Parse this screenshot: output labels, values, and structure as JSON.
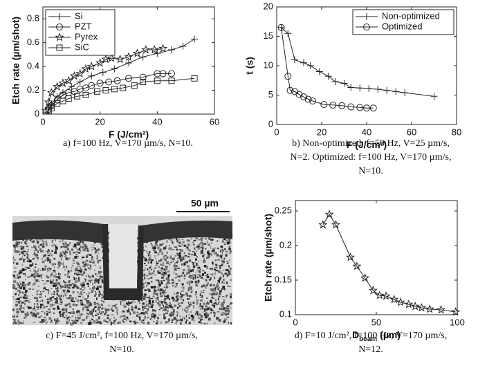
{
  "chart_data": [
    {
      "type": "line",
      "ylabel": "Etch rate (µm/shot)",
      "xlabel": "F (J/cm²)",
      "xlim": [
        0,
        60
      ],
      "xticks": [
        0,
        20,
        40,
        60
      ],
      "ylim": [
        0,
        0.9
      ],
      "yticks": [
        0,
        0.2,
        0.4,
        0.6,
        0.8
      ],
      "grid": false,
      "legend": "upper left",
      "series": [
        {
          "name": "Si",
          "marker": "plus",
          "color": "#222222",
          "x": [
            2,
            3,
            5,
            7,
            10,
            13,
            17,
            21,
            25,
            30,
            35,
            40,
            45,
            49,
            53
          ],
          "values": [
            0.04,
            0.08,
            0.15,
            0.18,
            0.23,
            0.27,
            0.32,
            0.35,
            0.38,
            0.43,
            0.48,
            0.51,
            0.54,
            0.57,
            0.63
          ]
        },
        {
          "name": "PZT",
          "marker": "circle",
          "color": "#222222",
          "x": [
            2,
            3,
            5,
            7,
            9,
            11,
            13,
            15,
            17,
            20,
            23,
            26,
            30,
            35,
            40,
            42,
            45
          ],
          "values": [
            0.04,
            0.07,
            0.12,
            0.16,
            0.18,
            0.19,
            0.21,
            0.22,
            0.24,
            0.26,
            0.27,
            0.28,
            0.3,
            0.31,
            0.34,
            0.34,
            0.34
          ]
        },
        {
          "name": "Pyrex",
          "marker": "star",
          "color": "#222222",
          "x": [
            1,
            2,
            3,
            5,
            7,
            9,
            11,
            13,
            15,
            17,
            20,
            22,
            24,
            27,
            30,
            33,
            36,
            39,
            42
          ],
          "values": [
            0.03,
            0.1,
            0.18,
            0.23,
            0.26,
            0.28,
            0.32,
            0.34,
            0.38,
            0.4,
            0.43,
            0.46,
            0.47,
            0.46,
            0.48,
            0.51,
            0.54,
            0.54,
            0.55
          ]
        },
        {
          "name": "SiC",
          "marker": "square",
          "color": "#222222",
          "x": [
            2,
            3,
            5,
            7,
            9,
            12,
            15,
            19,
            22,
            25,
            28,
            32,
            35,
            40,
            45,
            53
          ],
          "values": [
            0.03,
            0.05,
            0.09,
            0.11,
            0.13,
            0.15,
            0.16,
            0.19,
            0.2,
            0.21,
            0.22,
            0.24,
            0.27,
            0.28,
            0.28,
            0.3
          ]
        }
      ],
      "caption": [
        "a) f=100 Hz, V=170 µm/s, N=10."
      ]
    },
    {
      "type": "line",
      "ylabel": "t (s)",
      "xlabel": "F (J/cm²)",
      "xlim": [
        0,
        80
      ],
      "xticks": [
        0,
        20,
        40,
        60,
        80
      ],
      "ylim": [
        0,
        20
      ],
      "yticks": [
        0,
        5,
        10,
        15,
        20
      ],
      "grid": false,
      "legend": "upper right",
      "series": [
        {
          "name": "Non-optimized",
          "marker": "plus",
          "color": "#222222",
          "x": [
            2,
            5,
            8,
            12,
            15,
            19,
            23,
            26,
            30,
            33,
            37,
            41,
            45,
            49,
            53,
            57,
            70
          ],
          "values": [
            16.5,
            15.5,
            11,
            10.5,
            10,
            9,
            8.2,
            7.3,
            7,
            6.3,
            6.2,
            6.1,
            6,
            5.8,
            5.6,
            5.4,
            4.8
          ]
        },
        {
          "name": "Optimized",
          "marker": "circle",
          "color": "#222222",
          "x": [
            2,
            5,
            6,
            8,
            10,
            12,
            14,
            16,
            21,
            25,
            29,
            33,
            37,
            40,
            43
          ],
          "values": [
            16.5,
            8.2,
            5.8,
            5.6,
            5.1,
            4.7,
            4.3,
            4,
            3.4,
            3.3,
            3.2,
            3,
            2.9,
            2.8,
            2.8
          ]
        }
      ],
      "caption": [
        "b) Non-optimized: f=50 Hz, V=25 µm/s,",
        "N=2. Optimized: f=100 Hz, V=170 µm/s,",
        "N=10."
      ]
    },
    {
      "type": "line",
      "ylabel": "Etch rate (µm/shot)",
      "xlabel": "D",
      "xlabel_sub": "beam",
      "xlabel_unit": "(µm)",
      "xlim": [
        0,
        100
      ],
      "xticks": [
        0,
        50,
        100
      ],
      "ylim": [
        0.1,
        0.265
      ],
      "yticks": [
        0.1,
        0.15,
        0.2,
        0.25
      ],
      "grid": false,
      "series": [
        {
          "marker": "star",
          "color": "#222222",
          "x": [
            17,
            21,
            25,
            34,
            38,
            43,
            48,
            52,
            56,
            61,
            65,
            70,
            74,
            78,
            83,
            90,
            99
          ],
          "values": [
            0.23,
            0.245,
            0.23,
            0.183,
            0.17,
            0.153,
            0.135,
            0.128,
            0.127,
            0.122,
            0.118,
            0.115,
            0.112,
            0.11,
            0.108,
            0.107,
            0.104
          ]
        }
      ],
      "caption": [
        "d) F=10 J/cm², f=100 Hz, V=170 µm/s,",
        "N=12."
      ]
    }
  ],
  "micrograph": {
    "scale_label": "50 µm",
    "caption": [
      "c) F=45 J/cm², f=100 Hz, V=170 µm/s,",
      "N=10."
    ]
  }
}
